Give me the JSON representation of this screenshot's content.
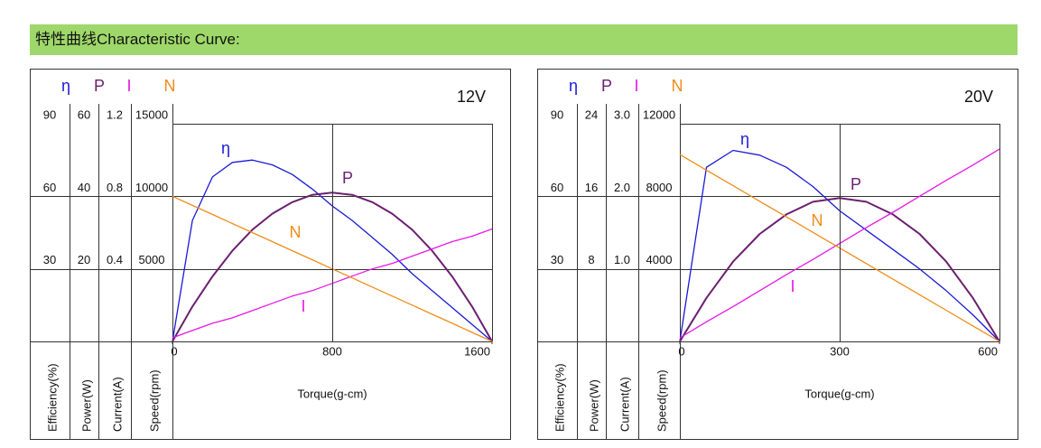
{
  "header": {
    "title": "特性曲线Characteristic Curve:"
  },
  "chart_data": [
    {
      "type": "line",
      "title": "12V",
      "xlabel": "Torque(g-cm)",
      "x": [
        0,
        100,
        200,
        300,
        400,
        500,
        600,
        700,
        800,
        900,
        1000,
        1100,
        1200,
        1300,
        1400,
        1500,
        1600
      ],
      "xlim": [
        0,
        1600
      ],
      "xticks": [
        0,
        800,
        1600
      ],
      "grid": true,
      "series": [
        {
          "name": "η",
          "color": "#1a1ad8",
          "label": "Efficiency(%)",
          "ylim": [
            0,
            90
          ],
          "yticks": [
            30,
            60,
            90
          ],
          "values": [
            0,
            50,
            68,
            74,
            75,
            73,
            69,
            63,
            56,
            50,
            43,
            36,
            28,
            21,
            14,
            7,
            0
          ]
        },
        {
          "name": "P",
          "color": "#6b2070",
          "label": "Power(W)",
          "ylim": [
            0,
            60
          ],
          "yticks": [
            20,
            40,
            60
          ],
          "values": [
            0,
            9.6,
            17.9,
            25,
            30.8,
            35.2,
            38.4,
            40.4,
            41,
            40.4,
            38.4,
            35.2,
            30.8,
            25,
            17.9,
            9.6,
            0
          ]
        },
        {
          "name": "I",
          "color": "#e619e6",
          "label": "Current(A)",
          "ylim": [
            0,
            1.2
          ],
          "yticks": [
            0.4,
            0.8,
            1.2
          ],
          "values": [
            0.02,
            0.06,
            0.1,
            0.13,
            0.17,
            0.21,
            0.25,
            0.28,
            0.32,
            0.36,
            0.4,
            0.43,
            0.47,
            0.51,
            0.55,
            0.58,
            0.62
          ]
        },
        {
          "name": "N",
          "color": "#f08c1a",
          "label": "Speed(rpm)",
          "ylim": [
            0,
            15000
          ],
          "yticks": [
            5000,
            10000,
            15000
          ],
          "values": [
            10000,
            9375,
            8750,
            8125,
            7500,
            6875,
            6250,
            5625,
            5000,
            4375,
            3750,
            3125,
            2500,
            1875,
            1250,
            625,
            0
          ]
        }
      ]
    },
    {
      "type": "line",
      "title": "20V",
      "xlabel": "Torque(g-cm)",
      "x": [
        0,
        50,
        100,
        150,
        200,
        250,
        300,
        350,
        400,
        450,
        500,
        550,
        600
      ],
      "xlim": [
        0,
        600
      ],
      "xticks": [
        0,
        300,
        600
      ],
      "grid": true,
      "series": [
        {
          "name": "η",
          "color": "#1a1ad8",
          "label": "Efficiency(%)",
          "ylim": [
            0,
            90
          ],
          "yticks": [
            30,
            60,
            90
          ],
          "values": [
            0,
            72,
            79,
            77,
            72,
            64,
            54,
            46,
            38,
            30,
            21,
            11,
            0
          ]
        },
        {
          "name": "P",
          "color": "#6b2070",
          "label": "Power(W)",
          "ylim": [
            0,
            24
          ],
          "yticks": [
            8,
            16,
            24
          ],
          "values": [
            0,
            4.8,
            8.8,
            11.85,
            14,
            15.4,
            15.8,
            15.4,
            14,
            11.85,
            8.8,
            4.8,
            0
          ]
        },
        {
          "name": "I",
          "color": "#e619e6",
          "label": "Current(A)",
          "ylim": [
            0,
            3
          ],
          "yticks": [
            {
              "value": 1,
              "label": "1.0"
            },
            {
              "value": 2,
              "label": "2.0"
            },
            {
              "value": 3,
              "label": "3.0"
            }
          ],
          "values": [
            0.05,
            0.27,
            0.48,
            0.7,
            0.92,
            1.13,
            1.35,
            1.57,
            1.78,
            2,
            2.22,
            2.43,
            2.65
          ]
        },
        {
          "name": "N",
          "color": "#f08c1a",
          "label": "Speed(rpm)",
          "ylim": [
            0,
            12000
          ],
          "yticks": [
            4000,
            8000,
            12000
          ],
          "values": [
            10300,
            9442,
            8583,
            7725,
            6867,
            6008,
            5150,
            4292,
            3433,
            2575,
            1717,
            858,
            0
          ]
        }
      ]
    }
  ]
}
